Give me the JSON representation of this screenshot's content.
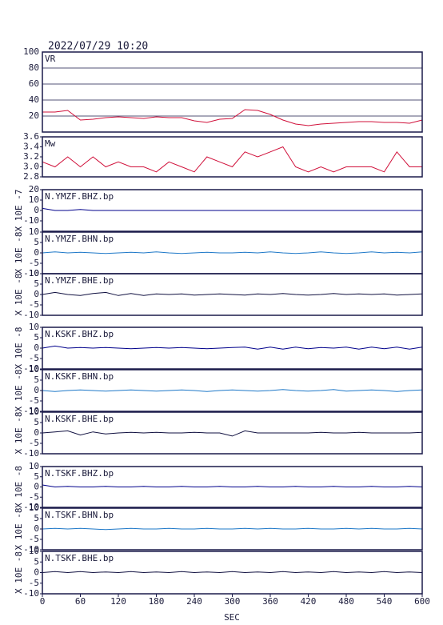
{
  "chart_data": {
    "type": "line",
    "title": "2022/07/29 10:20",
    "x_label": "SEC",
    "xlim": [
      0,
      600
    ],
    "xticks": [
      0,
      60,
      120,
      180,
      240,
      300,
      360,
      420,
      480,
      540,
      600
    ],
    "x": [
      0,
      20,
      40,
      60,
      80,
      100,
      120,
      140,
      160,
      180,
      200,
      220,
      240,
      260,
      280,
      300,
      320,
      340,
      360,
      380,
      400,
      420,
      440,
      460,
      480,
      500,
      520,
      540,
      560,
      580,
      600
    ],
    "panels": [
      {
        "ylim": [
          0,
          100
        ],
        "yticks": [
          20,
          40,
          60,
          80,
          100
        ],
        "grid": true,
        "series": [
          {
            "name": "VR",
            "color": "#d0103a",
            "values": [
              25,
              25,
              27,
              15,
              16,
              18,
              19,
              18,
              17,
              19,
              18,
              18,
              14,
              12,
              16,
              17,
              28,
              27,
              22,
              15,
              10,
              8,
              10,
              11,
              12,
              13,
              13,
              12,
              12,
              11,
              15
            ]
          }
        ]
      },
      {
        "ylim": [
          2.8,
          3.6
        ],
        "yticks": [
          {
            "value": 2.8,
            "label": "2.8"
          },
          {
            "value": 3,
            "label": "3.0"
          },
          {
            "value": 3.2,
            "label": "3.2"
          },
          {
            "value": 3.4,
            "label": "3.4"
          },
          {
            "value": 3.6,
            "label": "3.6"
          }
        ],
        "grid": false,
        "series": [
          {
            "name": "Mw",
            "color": "#d0103a",
            "values": [
              3.1,
              3.0,
              3.2,
              3.0,
              3.2,
              3.0,
              3.1,
              3.0,
              3.0,
              2.9,
              3.1,
              3.0,
              2.9,
              3.2,
              3.1,
              3.0,
              3.3,
              3.2,
              3.3,
              3.4,
              3.0,
              2.9,
              3.0,
              2.9,
              3.0,
              3.0,
              3.0,
              2.9,
              3.3,
              3.0,
              3.0
            ]
          }
        ]
      },
      {
        "ylabel": "X 10E -7",
        "ylim": [
          -20,
          20
        ],
        "yticks": [
          -10,
          0,
          10,
          20
        ],
        "grid": false,
        "series": [
          {
            "name": "N.YMZF.BHZ.bp",
            "color": "#00008b",
            "values": [
              2,
              0,
              0,
              1,
              0,
              0,
              0,
              0,
              0,
              0,
              0,
              0,
              0,
              0,
              0,
              0,
              0,
              0,
              0,
              0,
              0,
              0,
              0,
              0,
              0,
              0,
              0,
              0,
              0,
              0,
              0
            ]
          }
        ]
      },
      {
        "ylabel": "X 10E -8",
        "ylim": [
          -10,
          10
        ],
        "yticks": [
          -10,
          -5,
          0,
          5,
          10
        ],
        "grid": false,
        "series": [
          {
            "name": "N.YMZF.BHN.bp",
            "color": "#1e78c8",
            "values": [
              0,
              0.5,
              0,
              0.3,
              0,
              -0.3,
              0,
              0.3,
              0,
              0.5,
              0,
              -0.3,
              0,
              0.3,
              0,
              0,
              0.3,
              0,
              0.5,
              0,
              -0.3,
              0,
              0.5,
              0,
              -0.3,
              0,
              0.5,
              0,
              0.3,
              0,
              0.5
            ]
          }
        ]
      },
      {
        "ylabel": "X 10E -8",
        "ylim": [
          -10,
          10
        ],
        "yticks": [
          -10,
          -5,
          0,
          5,
          10
        ],
        "grid": false,
        "series": [
          {
            "name": "N.YMZF.BHE.bp",
            "color": "#101040",
            "values": [
              0,
              1,
              0,
              -0.5,
              0.5,
              1,
              -0.5,
              0.5,
              -0.5,
              0.3,
              0,
              0.3,
              -0.3,
              0,
              0.3,
              0,
              -0.3,
              0.3,
              0,
              0.5,
              0,
              -0.3,
              0,
              0.5,
              0,
              0.3,
              0,
              0.3,
              -0.3,
              0,
              0.3
            ]
          }
        ]
      },
      {
        "ylabel": "X 10E -8",
        "ylim": [
          -10,
          10
        ],
        "yticks": [
          -10,
          -5,
          0,
          5,
          10
        ],
        "grid": false,
        "series": [
          {
            "name": "N.KSKF.BHZ.bp",
            "color": "#00008b",
            "values": [
              0,
              1,
              0,
              0.3,
              0,
              0.3,
              0,
              -0.3,
              0,
              0.3,
              0,
              0.3,
              0,
              -0.3,
              0,
              0.3,
              0.5,
              -0.5,
              0.5,
              -0.5,
              0.5,
              -0.3,
              0.3,
              0,
              0.5,
              -0.5,
              0.5,
              -0.3,
              0.5,
              -0.5,
              0.5
            ]
          }
        ]
      },
      {
        "ylabel": "X 10E -8",
        "ylim": [
          -10,
          10
        ],
        "yticks": [
          -10,
          -5,
          0,
          5,
          10
        ],
        "grid": false,
        "series": [
          {
            "name": "N.KSKF.BHN.bp",
            "color": "#1e78c8",
            "values": [
              0,
              -0.5,
              0,
              0.3,
              0,
              -0.3,
              0,
              0.3,
              0,
              -0.3,
              0,
              0.3,
              0,
              -0.5,
              0,
              0.3,
              0,
              -0.3,
              0,
              0.5,
              0,
              -0.3,
              0,
              0.5,
              -0.3,
              0,
              0.3,
              0,
              -0.5,
              0,
              0.3
            ]
          }
        ]
      },
      {
        "ylabel": "X 10E -8",
        "ylim": [
          -10,
          10
        ],
        "yticks": [
          -10,
          -5,
          0,
          5,
          10
        ],
        "grid": false,
        "series": [
          {
            "name": "N.KSKF.BHE.bp",
            "color": "#101040",
            "values": [
              0,
              0.5,
              1,
              -1,
              0.5,
              -0.5,
              0,
              0.3,
              0,
              0.3,
              0,
              0,
              0.3,
              0,
              0,
              -1.5,
              1,
              0,
              0,
              0,
              0,
              0,
              0.3,
              0,
              0,
              0.3,
              0,
              0,
              0,
              0,
              0.3
            ]
          }
        ]
      },
      {
        "ylabel": "X 10E -8",
        "ylim": [
          -10,
          10
        ],
        "yticks": [
          -10,
          -5,
          0,
          5,
          10
        ],
        "grid": false,
        "series": [
          {
            "name": "N.TSKF.BHZ.bp",
            "color": "#00008b",
            "values": [
              1,
              0,
              0.3,
              0,
              0,
              0.3,
              0,
              0,
              0.3,
              0,
              0,
              0.3,
              0,
              0,
              0.3,
              0,
              0,
              0.3,
              0,
              0,
              0.3,
              0,
              0,
              0.3,
              0,
              0,
              0.3,
              0,
              0,
              0.3,
              0
            ]
          }
        ]
      },
      {
        "ylabel": "X 10E -8",
        "ylim": [
          -10,
          10
        ],
        "yticks": [
          -10,
          -5,
          0,
          5,
          10
        ],
        "grid": false,
        "series": [
          {
            "name": "N.TSKF.BHN.bp",
            "color": "#1e78c8",
            "values": [
              0,
              0.3,
              0,
              0.3,
              0,
              -0.3,
              0,
              0.3,
              0,
              0,
              0.3,
              0,
              0,
              0.3,
              0,
              0,
              0.3,
              0,
              0.3,
              0,
              0,
              0.3,
              0,
              0,
              0.3,
              0,
              0.3,
              0,
              0,
              0.3,
              0
            ]
          }
        ]
      },
      {
        "ylabel": "X 10E -8",
        "ylim": [
          -10,
          10
        ],
        "yticks": [
          -10,
          -5,
          0,
          5,
          10
        ],
        "grid": false,
        "series": [
          {
            "name": "N.TSKF.BHE.bp",
            "color": "#101040",
            "values": [
              0,
              0.5,
              0,
              0.5,
              0,
              0.3,
              0,
              0.5,
              0,
              0.3,
              0,
              0.5,
              0,
              0.3,
              0,
              0.5,
              0,
              0.3,
              0,
              0.5,
              0,
              0.3,
              0,
              0.5,
              0,
              0.3,
              0,
              0.5,
              0,
              0.3,
              0
            ]
          }
        ]
      }
    ]
  }
}
